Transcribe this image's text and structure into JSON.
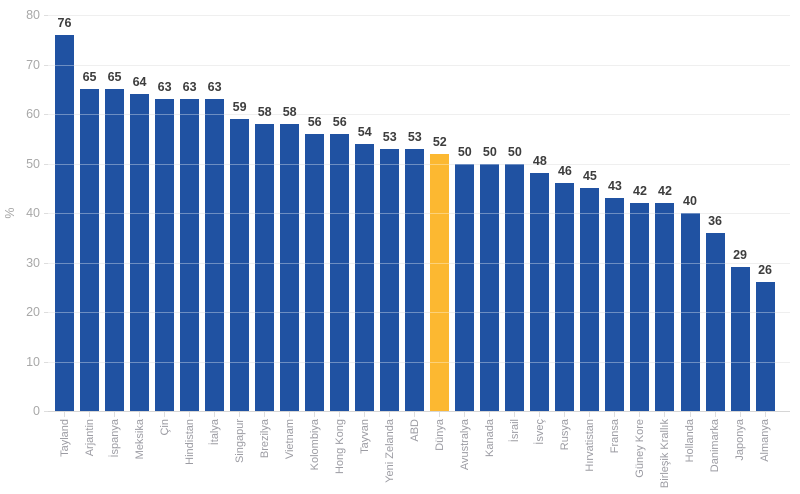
{
  "chart_data": {
    "type": "bar",
    "title": "",
    "xlabel": "",
    "ylabel": "%",
    "ylim": [
      0,
      80
    ],
    "ytick_step": 10,
    "grid": true,
    "legend": false,
    "data_labels": true,
    "categories": [
      "Tayland",
      "Arjantin",
      "İspanya",
      "Meksika",
      "Çin",
      "Hindistan",
      "İtalya",
      "Singapur",
      "Brezilya",
      "Vietnam",
      "Kolombiya",
      "Hong Kong",
      "Tayvan",
      "Yeni Zelanda",
      "ABD",
      "Dünya",
      "Avustralya",
      "Kanada",
      "İsrail",
      "İsveç",
      "Rusya",
      "Hırvatistan",
      "Fransa",
      "Güney Kore",
      "Birleşik Krallık",
      "Hollanda",
      "Danimarka",
      "Japonya",
      "Almanya"
    ],
    "values": [
      76,
      65,
      65,
      64,
      63,
      63,
      63,
      59,
      58,
      58,
      56,
      56,
      54,
      53,
      53,
      52,
      50,
      50,
      50,
      48,
      46,
      45,
      43,
      42,
      42,
      40,
      36,
      29,
      26
    ],
    "highlight_category": "Dünya",
    "highlight_index": 15,
    "colors": {
      "bar": "#2052a2",
      "highlight": "#fcb831",
      "value_label": "#3d3d3d",
      "axis_label": "#a8a8a8",
      "category_label": "#9c9ca3",
      "gridline": "#e7e7e7"
    }
  }
}
